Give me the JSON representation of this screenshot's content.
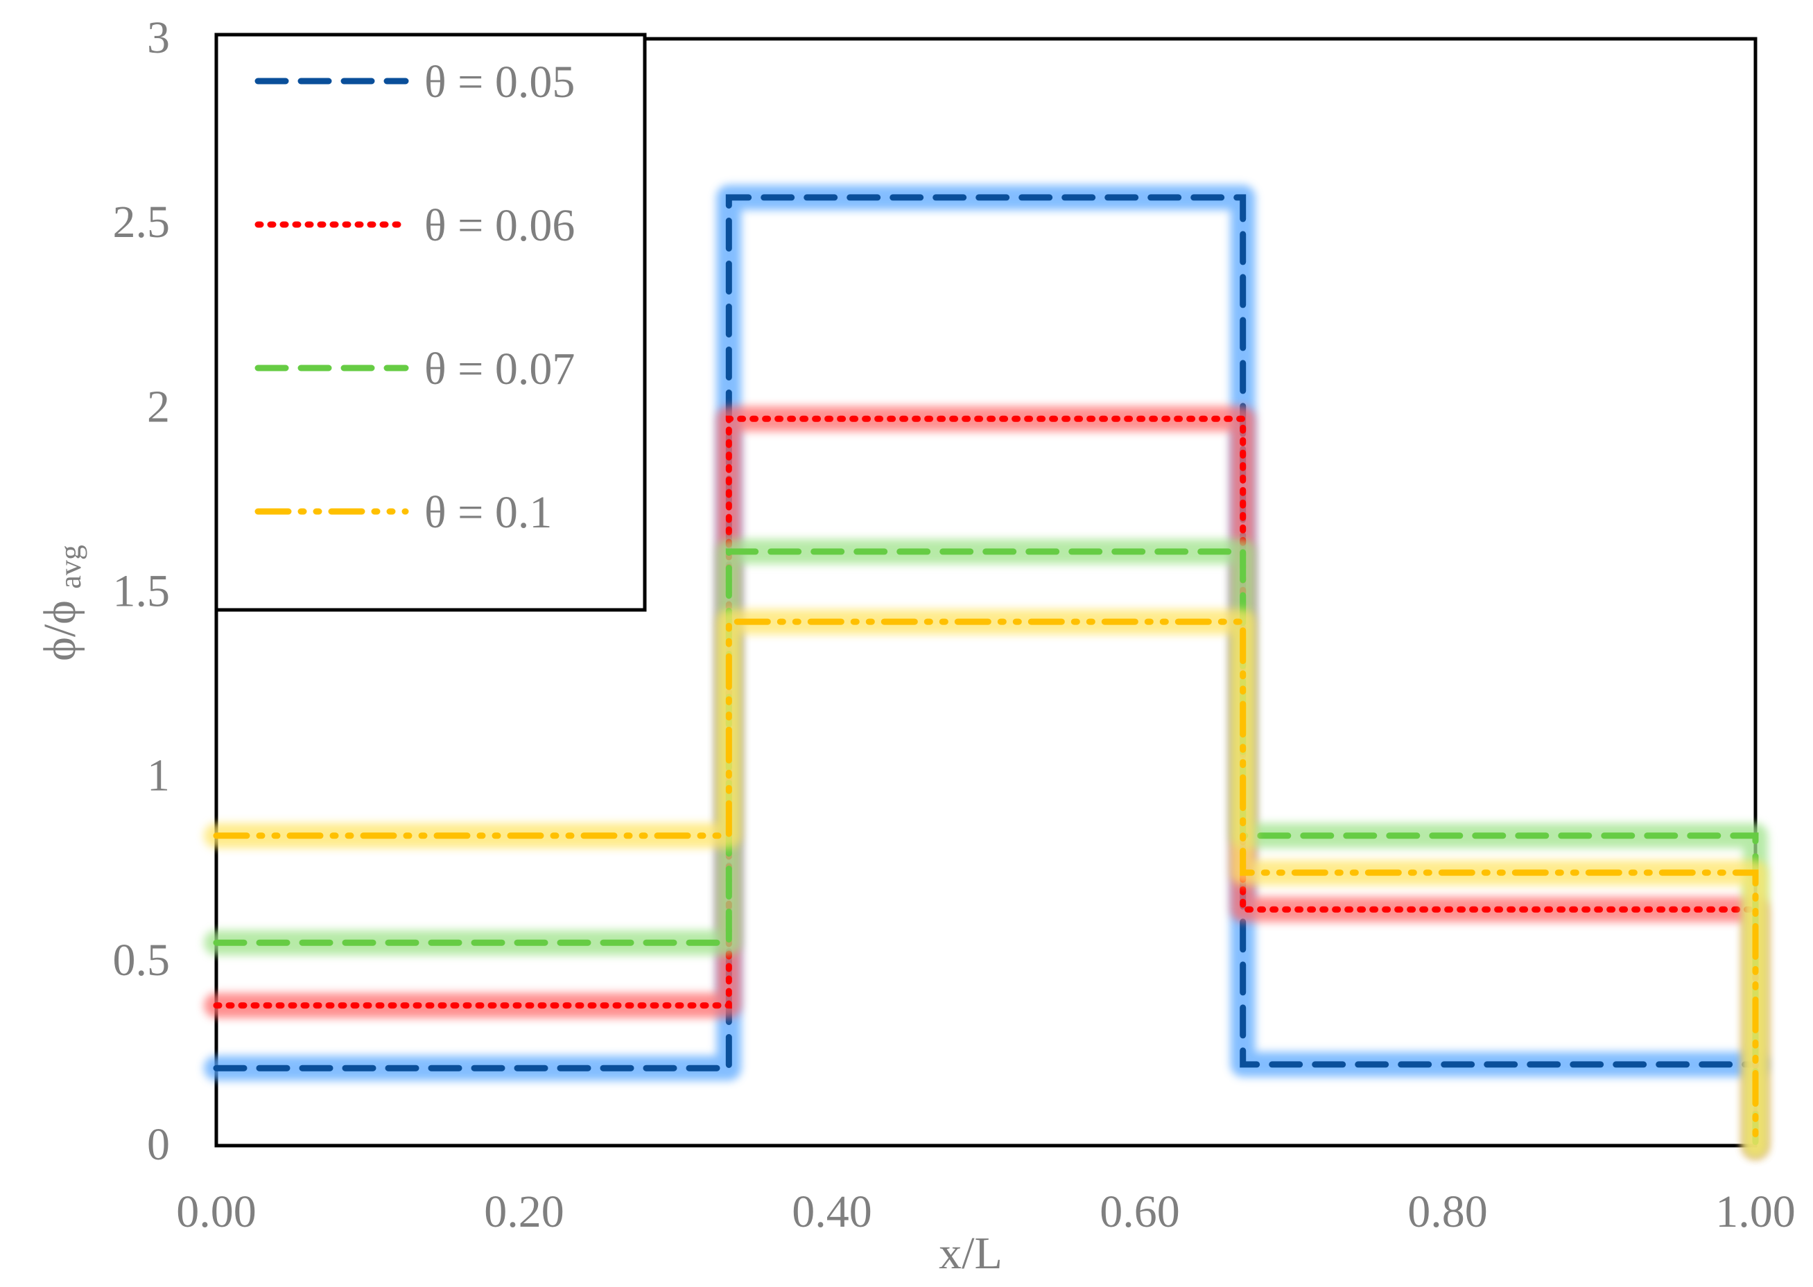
{
  "chart_data": {
    "type": "line",
    "title": "",
    "xlabel": "x/L",
    "ylabel": "ϕ/ϕ",
    "ylabel_subscript": "avg",
    "xlim": [
      0,
      1
    ],
    "ylim": [
      0,
      3
    ],
    "x_ticks": [
      "0.00",
      "0.20",
      "0.40",
      "0.60",
      "0.80",
      "1.00"
    ],
    "x_tick_values": [
      0,
      0.2,
      0.4,
      0.6,
      0.8,
      1.0
    ],
    "y_ticks": [
      "0",
      "0.5",
      "1",
      "1.5",
      "2",
      "2.5",
      "3"
    ],
    "y_tick_values": [
      0,
      0.5,
      1,
      1.5,
      2,
      2.5,
      3
    ],
    "grid": false,
    "legend_position": "top-left",
    "series": [
      {
        "name": "θ = 0.05",
        "color": "#0a4f9a",
        "glow": "#5aa8ff",
        "style": "dashed",
        "x": [
          0,
          0.333,
          0.333,
          0.667,
          0.667,
          1.0
        ],
        "y": [
          0.21,
          0.21,
          2.57,
          2.57,
          0.22,
          0.22
        ]
      },
      {
        "name": "θ = 0.06",
        "color": "#ff0000",
        "glow": "#ff6a6a",
        "style": "dotted",
        "x": [
          0,
          0.333,
          0.333,
          0.667,
          0.667,
          1.0,
          1.0
        ],
        "y": [
          0.38,
          0.38,
          1.97,
          1.97,
          0.64,
          0.64,
          0
        ]
      },
      {
        "name": "θ = 0.07",
        "color": "#66cc44",
        "glow": "#9fe38a",
        "style": "dashed",
        "x": [
          0,
          0.333,
          0.333,
          0.667,
          0.667,
          1.0,
          1.0
        ],
        "y": [
          0.55,
          0.55,
          1.61,
          1.61,
          0.84,
          0.84,
          0
        ]
      },
      {
        "name": "θ = 0.1",
        "color": "#ffc000",
        "glow": "#ffe566",
        "style": "dash-dot-dot",
        "x": [
          0,
          0.333,
          0.333,
          0.667,
          0.667,
          1.0,
          1.0
        ],
        "y": [
          0.84,
          0.84,
          1.42,
          1.42,
          0.74,
          0.74,
          0
        ]
      }
    ]
  }
}
